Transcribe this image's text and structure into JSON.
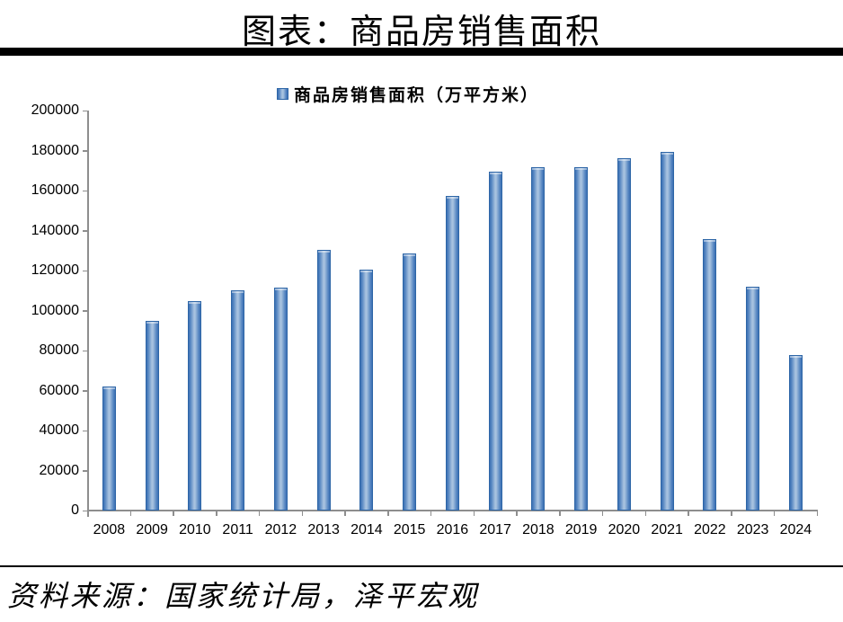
{
  "title": "图表：商品房销售面积",
  "source": "资料来源：国家统计局，泽平宏观",
  "colors": {
    "bar_edge": "#3C70B3",
    "bar_center": "#A7C2DF",
    "bar_border": "#2E66A7",
    "axis": "#8E8E8E",
    "text": "#000000",
    "title_rule": "#000000"
  },
  "chart_data": {
    "type": "bar",
    "title": "",
    "legend": "商品房销售面积（万平方米）",
    "legend_position": "top-center",
    "grid": false,
    "categories": [
      "2008",
      "2009",
      "2010",
      "2011",
      "2012",
      "2013",
      "2014",
      "2015",
      "2016",
      "2017",
      "2018",
      "2019",
      "2020",
      "2021",
      "2022",
      "2023",
      "2024"
    ],
    "values": [
      62089,
      94755,
      104765,
      109946,
      111304,
      130551,
      120649,
      128495,
      157349,
      169408,
      171654,
      171558,
      176086,
      179433,
      135837,
      111735,
      77930
    ],
    "xlabel": "",
    "ylabel": "",
    "ylim": [
      0,
      200000
    ],
    "ytick_step": 20000,
    "yticks": [
      0,
      20000,
      40000,
      60000,
      80000,
      100000,
      120000,
      140000,
      160000,
      180000,
      200000
    ]
  }
}
